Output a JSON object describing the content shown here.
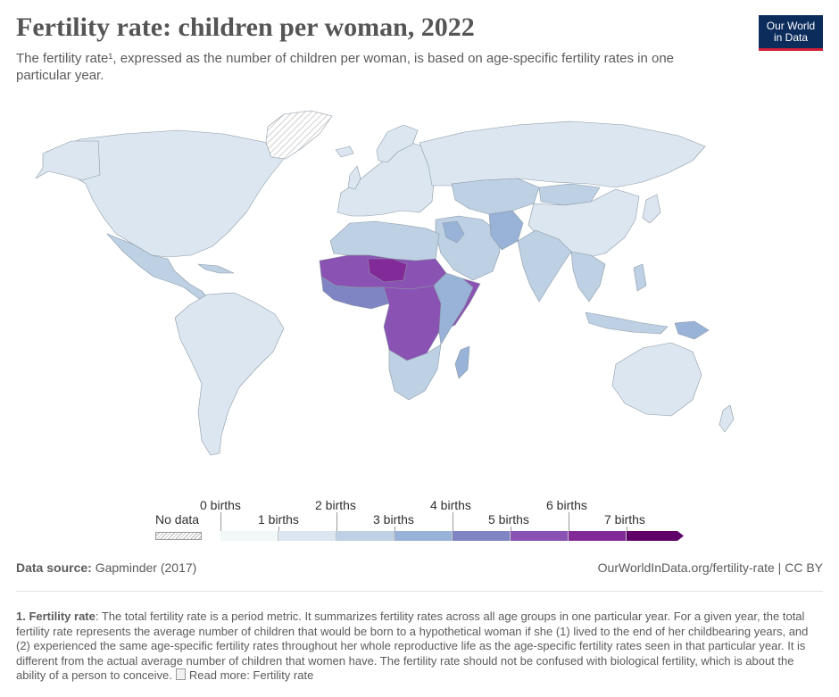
{
  "header": {
    "title": "Fertility rate: children per woman, 2022",
    "subtitle": "The fertility rate¹, expressed as the number of children per woman, is based on age-specific fertility rates in one particular year."
  },
  "logo": {
    "line1": "Our World",
    "line2": "in Data"
  },
  "legend": {
    "no_data_label": "No data",
    "scale_labels_top": [
      "0 births",
      "2 births",
      "4 births",
      "6 births"
    ],
    "scale_labels_bottom": [
      "1 births",
      "3 births",
      "5 births",
      "7 births"
    ],
    "bin_colors": [
      "#f2f7f8",
      "#dbe6f0",
      "#bdd0e4",
      "#98b3d7",
      "#7f85c2",
      "#8a52b2",
      "#822a98",
      "#5e0068"
    ]
  },
  "map": {
    "region_colors": {
      "north_america": "#dbe6f0",
      "greenland": "no-data",
      "central_america": "#bdd0e4",
      "south_america": "#dbe6f0",
      "europe": "#dbe6f0",
      "russia_north_asia": "#dbe6f0",
      "central_asia": "#bdd0e4",
      "china": "#dbe6f0",
      "india": "#bdd0e4",
      "southeast_asia": "#bdd0e4",
      "north_africa": "#bdd0e4",
      "sahel": "#8a52b2",
      "niger": "#822a98",
      "west_africa": "#7f85c2",
      "central_africa": "#8a52b2",
      "east_africa": "#98b3d7",
      "somalia": "#8a52b2",
      "southern_africa": "#bdd0e4",
      "middle_east": "#bdd0e4",
      "afghanistan": "#98b3d7",
      "papua_new_guinea": "#98b3d7",
      "australia": "#dbe6f0"
    }
  },
  "footer": {
    "source_label": "Data source:",
    "source_value": "Gapminder (2017)",
    "url": "OurWorldInData.org/fertility-rate | CC BY"
  },
  "note": {
    "label": "1. Fertility rate",
    "text": ": The total fertility rate is a period metric. It summarizes fertility rates across all age groups in one particular year. For a given year, the total fertility rate represents the average number of children that would be born to a hypothetical woman if she (1) lived to the end of her childbearing years, and (2) experienced the same age-specific fertility rates throughout her whole reproductive life as the age-specific fertility rates seen in that particular year. It is different from the actual average number of children that women have. The fertility rate should not be confused with biological fertility, which is about the ability of a person to conceive.",
    "read_more": "Read more: Fertility rate"
  }
}
